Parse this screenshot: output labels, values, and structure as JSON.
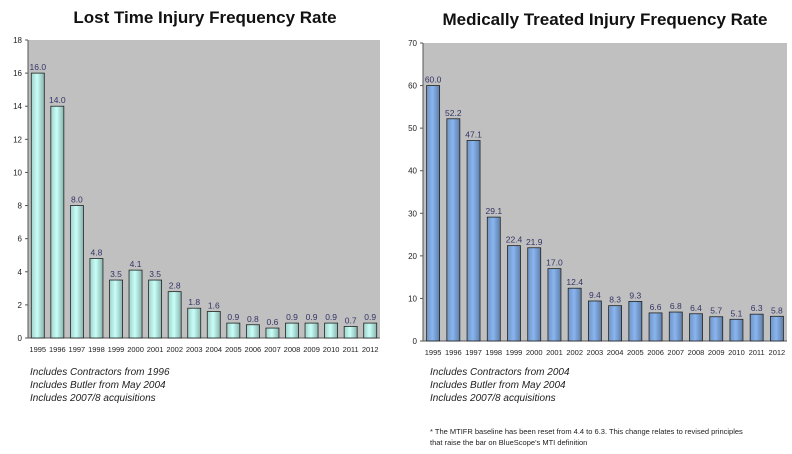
{
  "chart_data": [
    {
      "type": "bar",
      "title": "Lost Time Injury Frequency Rate",
      "categories": [
        "1995",
        "1996",
        "1997",
        "1998",
        "1999",
        "2000",
        "2001",
        "2002",
        "2003",
        "2004",
        "2005",
        "2006",
        "2007",
        "2008",
        "2009",
        "2010",
        "2011",
        "2012"
      ],
      "values": [
        16.0,
        14.0,
        8.0,
        4.8,
        3.5,
        4.1,
        3.5,
        2.8,
        1.8,
        1.6,
        0.9,
        0.8,
        0.6,
        0.9,
        0.9,
        0.9,
        0.7,
        0.9
      ],
      "data_labels": [
        "16.0",
        "14.0",
        "8.0",
        "4.8",
        "3.5",
        "4.1",
        "3.5",
        "2.8",
        "1.8",
        "1.6",
        "0.9",
        "0.8",
        "0.6",
        "0.9",
        "0.9",
        "0.9",
        "0.7",
        "0.9"
      ],
      "ylim": [
        0,
        18
      ],
      "yticks": [
        "0",
        "2",
        "4",
        "6",
        "8",
        "10",
        "12",
        "14",
        "16",
        "18"
      ],
      "grid": false,
      "plot_background": "#c0c0c0",
      "bar_color": "#b8eee6",
      "label_color": "#333366",
      "notes": [
        "Includes Contractors from 1996",
        "Includes Butler  from May 2004",
        "Includes 2007/8 acquisitions"
      ]
    },
    {
      "type": "bar",
      "title": "Medically Treated Injury Frequency Rate",
      "categories": [
        "1995",
        "1996",
        "1997",
        "1998",
        "1999",
        "2000",
        "2001",
        "2002",
        "2003",
        "2004",
        "2005",
        "2006",
        "2007",
        "2008",
        "2009",
        "2010",
        "2011",
        "2012"
      ],
      "values": [
        60.0,
        52.2,
        47.1,
        29.1,
        22.4,
        21.9,
        17.0,
        12.4,
        9.4,
        8.3,
        9.3,
        6.6,
        6.8,
        6.4,
        5.7,
        5.1,
        6.3,
        5.8
      ],
      "data_labels": [
        "60.0",
        "52.2",
        "47.1",
        "29.1",
        "22.4",
        "21.9",
        "17.0",
        "12.4",
        "9.4",
        "8.3",
        "9.3",
        "6.6",
        "6.8",
        "6.4",
        "5.7",
        "5.1",
        "6.3",
        "5.8"
      ],
      "ylim": [
        0,
        70
      ],
      "yticks": [
        "0",
        "10",
        "20",
        "30",
        "40",
        "50",
        "60",
        "70"
      ],
      "grid": false,
      "plot_background": "#c0c0c0",
      "bar_color": "#7fa8de",
      "label_color": "#333366",
      "notes": [
        "Includes Contractors  from 2004",
        "Includes Butler  from May 2004",
        "Includes 2007/8 acquisitions"
      ],
      "footnote": [
        "* The MTIFR baseline has been reset from 4.4 to 6.3. This change relates to revised principles",
        "that raise the bar on BlueScope's MTI definition"
      ]
    }
  ]
}
